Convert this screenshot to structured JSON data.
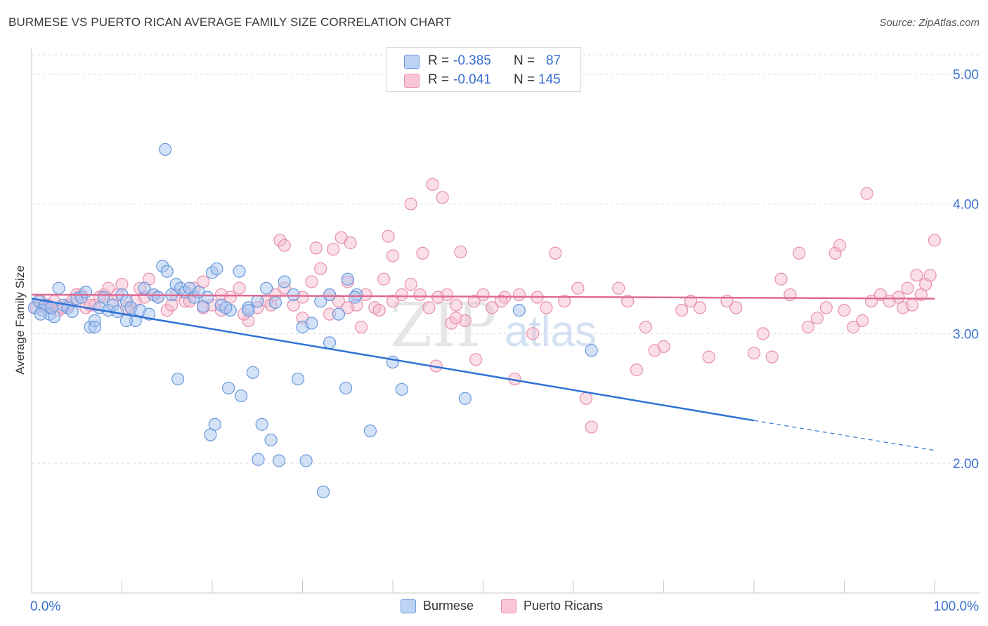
{
  "title": "BURMESE VS PUERTO RICAN AVERAGE FAMILY SIZE CORRELATION CHART",
  "source": "Source: ZipAtlas.com",
  "watermark": {
    "zip": "ZIP",
    "atlas": "atlas"
  },
  "stats": {
    "burmese": {
      "r_label": "R =",
      "r_value": "-0.385",
      "n_label": "N =",
      "n_value": "87"
    },
    "puerto_rican": {
      "r_label": "R =",
      "r_value": "-0.041",
      "n_label": "N =",
      "n_value": "145"
    }
  },
  "legend": {
    "burmese": "Burmese",
    "puerto_rican": "Puerto Ricans"
  },
  "colors": {
    "burmese_fill": "#a9c6ef",
    "burmese_stroke": "#6a99dc",
    "burmese_line": "#2f72d6",
    "pr_fill": "#f5b8cb",
    "pr_stroke": "#e88fae",
    "pr_line": "#e06a93",
    "axis_text": "#3a6fd1",
    "grid": "#dedede"
  },
  "chart_data": {
    "type": "scatter",
    "title": "BURMESE VS PUERTO RICAN AVERAGE FAMILY SIZE CORRELATION CHART",
    "xlabel": "",
    "ylabel": "Average Family Size",
    "xlim": [
      0,
      100
    ],
    "ylim": [
      1.0,
      5.15
    ],
    "x_tick_labels": [
      "0.0%",
      "100.0%"
    ],
    "y_ticks": [
      2.0,
      3.0,
      4.0,
      5.0
    ],
    "y_tick_labels": [
      "2.00",
      "3.00",
      "4.00",
      "5.00"
    ],
    "series": [
      {
        "name": "Burmese",
        "trend": {
          "x": [
            0,
            80
          ],
          "y": [
            3.27,
            2.33
          ],
          "dashed_to": [
            100,
            2.1
          ]
        },
        "points": [
          [
            0.3,
            3.2
          ],
          [
            0.8,
            3.25
          ],
          [
            1.2,
            3.18
          ],
          [
            1.5,
            3.22
          ],
          [
            2,
            3.15
          ],
          [
            2.5,
            3.13
          ],
          [
            3,
            3.35
          ],
          [
            3.5,
            3.22
          ],
          [
            4,
            3.2
          ],
          [
            4.5,
            3.17
          ],
          [
            5,
            3.27
          ],
          [
            5.5,
            3.28
          ],
          [
            6,
            3.32
          ],
          [
            6.5,
            3.05
          ],
          [
            7,
            3.1
          ],
          [
            7.5,
            3.2
          ],
          [
            8,
            3.28
          ],
          [
            8.5,
            3.18
          ],
          [
            9,
            3.22
          ],
          [
            9.5,
            3.17
          ],
          [
            10,
            3.3
          ],
          [
            10.5,
            3.25
          ],
          [
            11,
            3.2
          ],
          [
            11.5,
            3.1
          ],
          [
            12,
            3.18
          ],
          [
            12.5,
            3.35
          ],
          [
            13,
            3.15
          ],
          [
            13.5,
            3.3
          ],
          [
            14,
            3.28
          ],
          [
            14.5,
            3.52
          ],
          [
            15,
            3.48
          ],
          [
            15.5,
            3.3
          ],
          [
            16,
            3.38
          ],
          [
            16.5,
            3.35
          ],
          [
            17,
            3.32
          ],
          [
            17.5,
            3.35
          ],
          [
            18,
            3.28
          ],
          [
            18.5,
            3.32
          ],
          [
            19,
            3.21
          ],
          [
            19.5,
            3.28
          ],
          [
            20,
            3.47
          ],
          [
            20.5,
            3.5
          ],
          [
            21,
            3.22
          ],
          [
            22,
            3.18
          ],
          [
            23,
            3.48
          ],
          [
            24,
            3.2
          ],
          [
            25,
            3.25
          ],
          [
            26,
            3.35
          ],
          [
            27,
            3.24
          ],
          [
            28,
            3.4
          ],
          [
            29,
            3.3
          ],
          [
            30,
            3.05
          ],
          [
            31,
            3.08
          ],
          [
            32,
            3.25
          ],
          [
            33,
            3.3
          ],
          [
            34,
            3.15
          ],
          [
            35,
            3.42
          ],
          [
            36,
            3.3
          ],
          [
            14.8,
            4.42
          ],
          [
            21.5,
            3.2
          ],
          [
            24.5,
            2.7
          ],
          [
            25.5,
            2.3
          ],
          [
            26.5,
            2.18
          ],
          [
            20.3,
            2.3
          ],
          [
            19.8,
            2.22
          ],
          [
            21.8,
            2.58
          ],
          [
            23.2,
            2.52
          ],
          [
            25.1,
            2.03
          ],
          [
            27.4,
            2.02
          ],
          [
            29.5,
            2.65
          ],
          [
            30.4,
            2.02
          ],
          [
            32.3,
            1.78
          ],
          [
            34.8,
            2.58
          ],
          [
            37.5,
            2.25
          ],
          [
            40,
            2.78
          ],
          [
            41,
            2.57
          ],
          [
            48,
            2.5
          ],
          [
            54,
            3.18
          ],
          [
            62,
            2.87
          ],
          [
            33,
            2.93
          ],
          [
            35.8,
            3.28
          ],
          [
            10.5,
            3.1
          ],
          [
            7,
            3.05
          ],
          [
            2.2,
            3.2
          ],
          [
            1,
            3.15
          ],
          [
            16.2,
            2.65
          ],
          [
            24,
            3.18
          ]
        ]
      },
      {
        "name": "Puerto Ricans",
        "trend": {
          "x": [
            0,
            100
          ],
          "y": [
            3.3,
            3.27
          ]
        },
        "points": [
          [
            0.5,
            3.2
          ],
          [
            1,
            3.25
          ],
          [
            1.5,
            3.2
          ],
          [
            2,
            3.2
          ],
          [
            3,
            3.18
          ],
          [
            4,
            3.22
          ],
          [
            5,
            3.3
          ],
          [
            6,
            3.2
          ],
          [
            7,
            3.22
          ],
          [
            8,
            3.3
          ],
          [
            9,
            3.25
          ],
          [
            10,
            3.38
          ],
          [
            11,
            3.2
          ],
          [
            12,
            3.35
          ],
          [
            13,
            3.42
          ],
          [
            14,
            3.28
          ],
          [
            15,
            3.18
          ],
          [
            16,
            3.3
          ],
          [
            17,
            3.25
          ],
          [
            18,
            3.35
          ],
          [
            19,
            3.4
          ],
          [
            20,
            3.22
          ],
          [
            21,
            3.3
          ],
          [
            22,
            3.28
          ],
          [
            23,
            3.35
          ],
          [
            24,
            3.1
          ],
          [
            25,
            3.2
          ],
          [
            26,
            3.25
          ],
          [
            27,
            3.3
          ],
          [
            28,
            3.35
          ],
          [
            29,
            3.22
          ],
          [
            30,
            3.28
          ],
          [
            31,
            3.4
          ],
          [
            32,
            3.5
          ],
          [
            33,
            3.3
          ],
          [
            34,
            3.25
          ],
          [
            35,
            3.4
          ],
          [
            36,
            3.22
          ],
          [
            37,
            3.3
          ],
          [
            38,
            3.2
          ],
          [
            39,
            3.42
          ],
          [
            40,
            3.25
          ],
          [
            41,
            3.3
          ],
          [
            42,
            3.38
          ],
          [
            43,
            3.3
          ],
          [
            44,
            3.2
          ],
          [
            45,
            3.28
          ],
          [
            46,
            3.3
          ],
          [
            47,
            3.22
          ],
          [
            48,
            3.1
          ],
          [
            49,
            3.25
          ],
          [
            50,
            3.3
          ],
          [
            27.5,
            3.72
          ],
          [
            28,
            3.68
          ],
          [
            31.5,
            3.66
          ],
          [
            33.4,
            3.65
          ],
          [
            34.3,
            3.74
          ],
          [
            35.3,
            3.7
          ],
          [
            39.5,
            3.75
          ],
          [
            40,
            3.6
          ],
          [
            42,
            4.0
          ],
          [
            43.3,
            3.62
          ],
          [
            44.4,
            4.15
          ],
          [
            45.5,
            4.05
          ],
          [
            47.5,
            3.63
          ],
          [
            52.4,
            3.28
          ],
          [
            53.5,
            2.65
          ],
          [
            55.5,
            3.0
          ],
          [
            58,
            3.62
          ],
          [
            60.5,
            3.35
          ],
          [
            61.4,
            2.5
          ],
          [
            62,
            2.28
          ],
          [
            65,
            3.35
          ],
          [
            66,
            3.25
          ],
          [
            67,
            2.72
          ],
          [
            68,
            3.05
          ],
          [
            69,
            2.87
          ],
          [
            70,
            2.9
          ],
          [
            72,
            3.18
          ],
          [
            73,
            3.25
          ],
          [
            74,
            3.2
          ],
          [
            75,
            2.82
          ],
          [
            77,
            3.25
          ],
          [
            78,
            3.2
          ],
          [
            80,
            2.85
          ],
          [
            81,
            3.0
          ],
          [
            82,
            2.82
          ],
          [
            83,
            3.42
          ],
          [
            84,
            3.3
          ],
          [
            85,
            3.62
          ],
          [
            86,
            3.05
          ],
          [
            87,
            3.12
          ],
          [
            88,
            3.2
          ],
          [
            89,
            3.62
          ],
          [
            90,
            3.18
          ],
          [
            91,
            3.05
          ],
          [
            92,
            3.1
          ],
          [
            93,
            3.25
          ],
          [
            94,
            3.3
          ],
          [
            95,
            3.25
          ],
          [
            96,
            3.28
          ],
          [
            97,
            3.35
          ],
          [
            98,
            3.45
          ],
          [
            99,
            3.38
          ],
          [
            100,
            3.72
          ],
          [
            89.5,
            3.68
          ],
          [
            92.5,
            4.08
          ],
          [
            96.5,
            3.2
          ],
          [
            97.5,
            3.22
          ],
          [
            98.5,
            3.3
          ],
          [
            99.5,
            3.45
          ],
          [
            46.5,
            3.08
          ],
          [
            44.8,
            2.75
          ],
          [
            47,
            3.12
          ],
          [
            49.2,
            2.8
          ],
          [
            38.5,
            3.18
          ],
          [
            36.5,
            3.05
          ],
          [
            35,
            3.2
          ],
          [
            33,
            3.15
          ],
          [
            30,
            3.12
          ],
          [
            26.5,
            3.22
          ],
          [
            23.5,
            3.15
          ],
          [
            21,
            3.18
          ],
          [
            19,
            3.2
          ],
          [
            17.5,
            3.25
          ],
          [
            15.5,
            3.22
          ],
          [
            13.5,
            3.3
          ],
          [
            12.5,
            3.28
          ],
          [
            11.5,
            3.25
          ],
          [
            10.5,
            3.2
          ],
          [
            9.5,
            3.3
          ],
          [
            8.5,
            3.35
          ],
          [
            7.5,
            3.28
          ],
          [
            6.5,
            3.22
          ],
          [
            5.5,
            3.3
          ],
          [
            4.5,
            3.25
          ],
          [
            3.5,
            3.2
          ],
          [
            2.5,
            3.25
          ],
          [
            1.8,
            3.22
          ],
          [
            51,
            3.2
          ],
          [
            52,
            3.25
          ],
          [
            54,
            3.3
          ],
          [
            56,
            3.28
          ],
          [
            57,
            3.2
          ],
          [
            59,
            3.25
          ]
        ]
      }
    ]
  }
}
